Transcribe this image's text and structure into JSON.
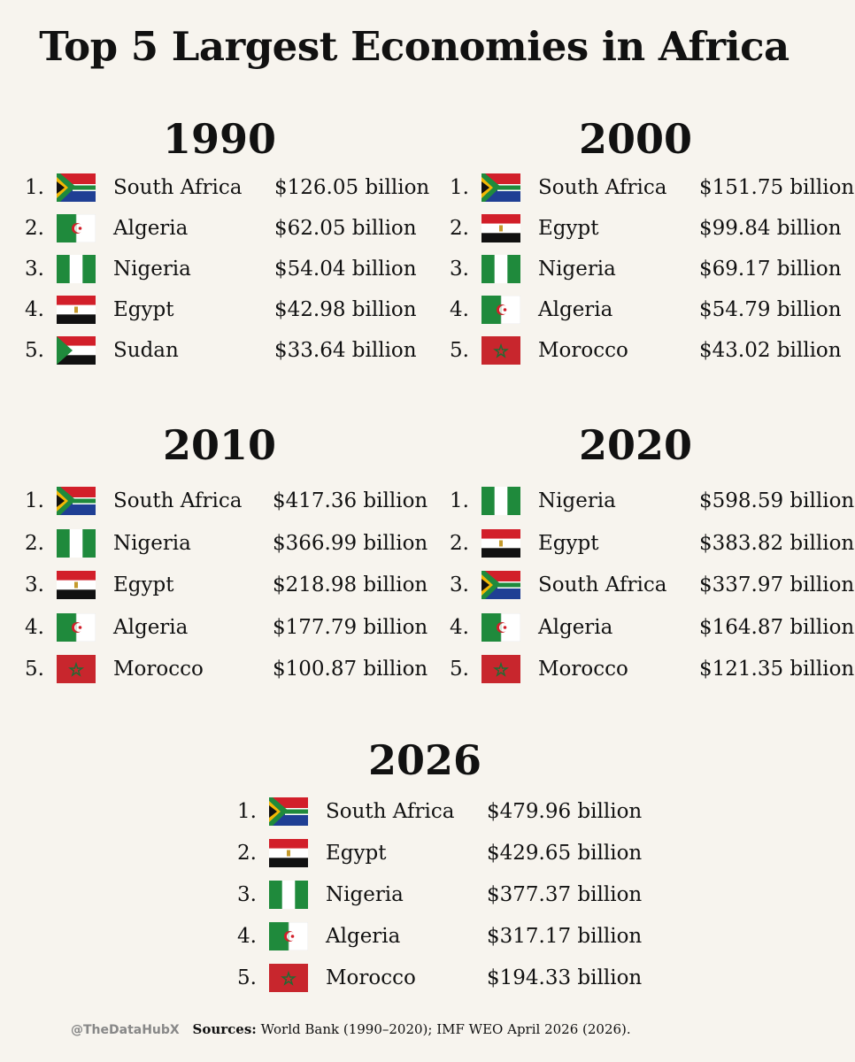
{
  "title": "Top 5 Largest Economies in Africa",
  "sections": [
    {
      "year": "1990",
      "rows": [
        {
          "rank": "1.",
          "country": "South Africa",
          "value": "$126.05 billion",
          "flag": "south-africa"
        },
        {
          "rank": "2.",
          "country": "Algeria",
          "value": "$62.05 billion",
          "flag": "algeria"
        },
        {
          "rank": "3.",
          "country": "Nigeria",
          "value": "$54.04 billion",
          "flag": "nigeria"
        },
        {
          "rank": "4.",
          "country": "Egypt",
          "value": "$42.98 billion",
          "flag": "egypt"
        },
        {
          "rank": "5.",
          "country": "Sudan",
          "value": "$33.64 billion",
          "flag": "sudan"
        }
      ]
    },
    {
      "year": "2000",
      "rows": [
        {
          "rank": "1.",
          "country": "South Africa",
          "value": "$151.75 billion",
          "flag": "south-africa"
        },
        {
          "rank": "2.",
          "country": "Egypt",
          "value": "$99.84 billion",
          "flag": "egypt"
        },
        {
          "rank": "3.",
          "country": "Nigeria",
          "value": "$69.17 billion",
          "flag": "nigeria"
        },
        {
          "rank": "4.",
          "country": "Algeria",
          "value": "$54.79 billion",
          "flag": "algeria"
        },
        {
          "rank": "5.",
          "country": "Morocco",
          "value": "$43.02 billion",
          "flag": "morocco"
        }
      ]
    },
    {
      "year": "2010",
      "rows": [
        {
          "rank": "1.",
          "country": "South Africa",
          "value": "$417.36 billion",
          "flag": "south-africa"
        },
        {
          "rank": "2.",
          "country": "Nigeria",
          "value": "$366.99 billion",
          "flag": "nigeria"
        },
        {
          "rank": "3.",
          "country": "Egypt",
          "value": "$218.98 billion",
          "flag": "egypt"
        },
        {
          "rank": "4.",
          "country": "Algeria",
          "value": "$177.79 billion",
          "flag": "algeria"
        },
        {
          "rank": "5.",
          "country": "Morocco",
          "value": "$100.87 billion",
          "flag": "morocco"
        }
      ]
    },
    {
      "year": "2020",
      "rows": [
        {
          "rank": "1.",
          "country": "Nigeria",
          "value": "$598.59 billion",
          "flag": "nigeria"
        },
        {
          "rank": "2.",
          "country": "Egypt",
          "value": "$383.82 billion",
          "flag": "egypt"
        },
        {
          "rank": "3.",
          "country": "South Africa",
          "value": "$337.97 billion",
          "flag": "south-africa"
        },
        {
          "rank": "4.",
          "country": "Algeria",
          "value": "$164.87 billion",
          "flag": "algeria"
        },
        {
          "rank": "5.",
          "country": "Morocco",
          "value": "$121.35 billion",
          "flag": "morocco"
        }
      ]
    },
    {
      "year": "2026",
      "rows": [
        {
          "rank": "1.",
          "country": "South Africa",
          "value": "$479.96 billion",
          "flag": "south-africa"
        },
        {
          "rank": "2.",
          "country": "Egypt",
          "value": "$429.65 billion",
          "flag": "egypt"
        },
        {
          "rank": "3.",
          "country": "Nigeria",
          "value": "$377.37 billion",
          "flag": "nigeria"
        },
        {
          "rank": "4.",
          "country": "Algeria",
          "value": "$317.17 billion",
          "flag": "algeria"
        },
        {
          "rank": "5.",
          "country": "Morocco",
          "value": "$194.33 billion",
          "flag": "morocco"
        }
      ]
    }
  ],
  "footer": {
    "handle": "@TheDataHubX",
    "sources_label": "Sources:",
    "sources_text": "World Bank (1990–2020); IMF WEO April 2026 (2026)."
  },
  "colors": {
    "background": "#f7f4ee",
    "green": "#1f8a3c",
    "red": "#d21f2a",
    "blue": "#1f3f94",
    "gold": "#f2b705"
  }
}
